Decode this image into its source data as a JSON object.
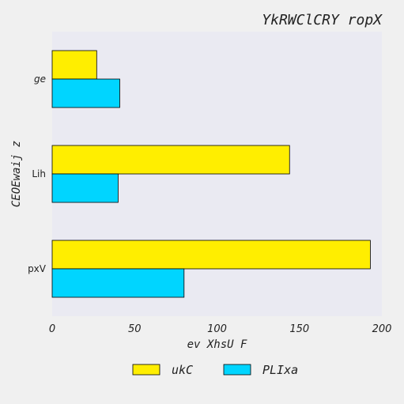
{
  "chart_data": {
    "type": "bar",
    "orientation": "horizontal",
    "title": "YkRWClCRY ropX",
    "xlabel": "ev XhsU F",
    "ylabel": "CEOEwaij z",
    "categories": [
      "ge",
      "Lih",
      "pxV"
    ],
    "series": [
      {
        "name": "ukC",
        "values": [
          27,
          144,
          193
        ],
        "color": "#ffee00"
      },
      {
        "name": "PLIxa",
        "values": [
          41,
          40,
          80
        ],
        "color": "#00d5ff"
      }
    ],
    "xlim": [
      0,
      200
    ],
    "xticks": [
      0,
      50,
      100,
      150,
      200
    ],
    "grid": false,
    "legend_position": "bottom-center",
    "plot_background": "#eaeaf2"
  }
}
